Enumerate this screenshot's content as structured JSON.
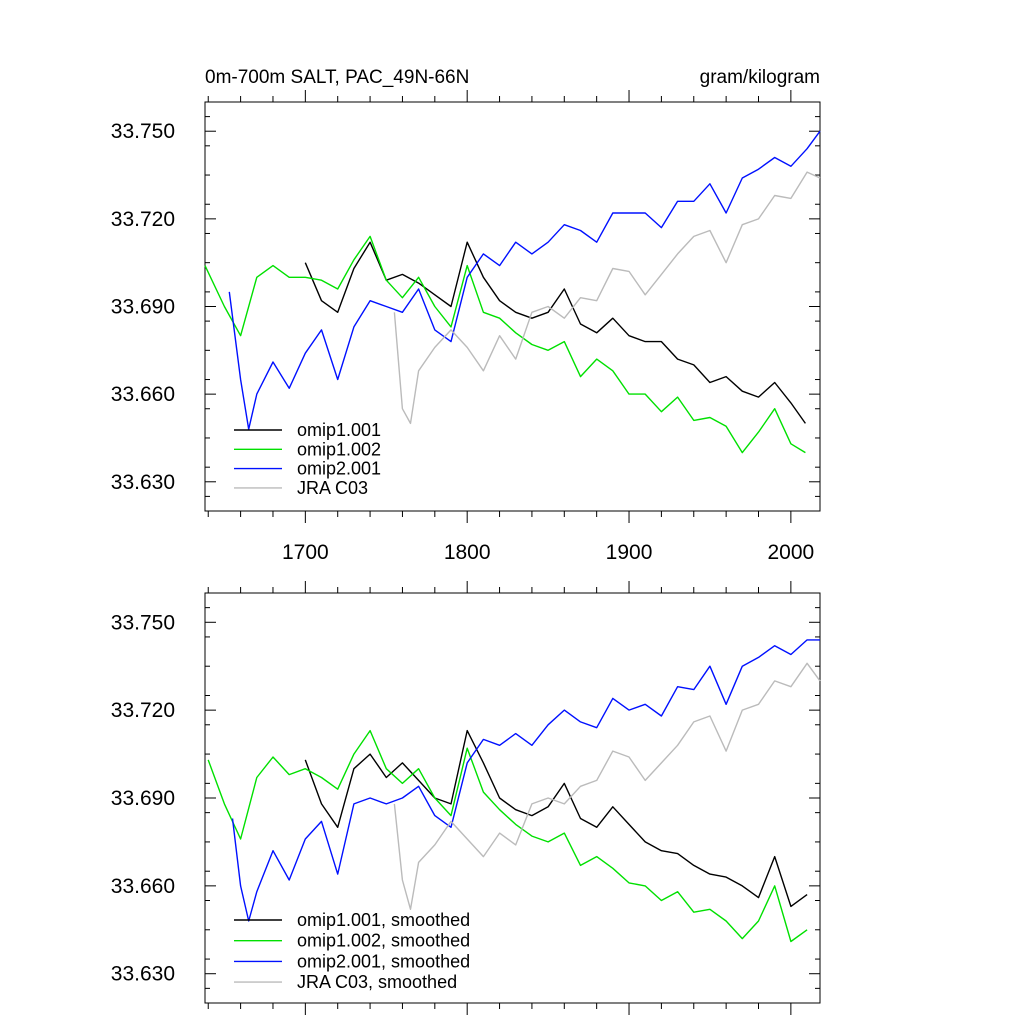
{
  "chart_data": [
    {
      "type": "line",
      "title": "0m-700m SALT, PAC_49N-66N",
      "units": "gram/kilogram",
      "xlabel": "",
      "ylabel": "",
      "xlim": [
        1638,
        2018
      ],
      "ylim": [
        33.62,
        33.76
      ],
      "x_ticks": [
        1700,
        1800,
        1900,
        2000
      ],
      "y_ticks": [
        33.63,
        33.66,
        33.69,
        33.72,
        33.75
      ],
      "y_tick_labels": [
        "33.630",
        "33.660",
        "33.690",
        "33.720",
        "33.750"
      ],
      "legend_position": "bottom-left",
      "series": [
        {
          "name": "omip1.001",
          "color": "#000000",
          "x": [
            1700,
            1710,
            1720,
            1730,
            1740,
            1750,
            1760,
            1770,
            1780,
            1790,
            1800,
            1810,
            1820,
            1830,
            1840,
            1850,
            1860,
            1870,
            1880,
            1890,
            1900,
            1910,
            1920,
            1930,
            1940,
            1950,
            1960,
            1970,
            1980,
            1990,
            2000,
            2009
          ],
          "y": [
            33.705,
            33.692,
            33.688,
            33.703,
            33.712,
            33.699,
            33.701,
            33.698,
            33.694,
            33.69,
            33.712,
            33.7,
            33.692,
            33.688,
            33.686,
            33.688,
            33.696,
            33.684,
            33.681,
            33.686,
            33.68,
            33.678,
            33.678,
            33.672,
            33.67,
            33.664,
            33.666,
            33.661,
            33.659,
            33.664,
            33.657,
            33.65
          ]
        },
        {
          "name": "omip1.002",
          "color": "#00e000",
          "x": [
            1638,
            1650,
            1660,
            1670,
            1680,
            1690,
            1700,
            1710,
            1720,
            1730,
            1740,
            1750,
            1760,
            1770,
            1780,
            1790,
            1800,
            1810,
            1820,
            1830,
            1840,
            1850,
            1860,
            1870,
            1880,
            1890,
            1900,
            1910,
            1920,
            1930,
            1940,
            1950,
            1960,
            1970,
            1980,
            1990,
            2000,
            2009
          ],
          "y": [
            33.704,
            33.69,
            33.68,
            33.7,
            33.704,
            33.7,
            33.7,
            33.699,
            33.696,
            33.706,
            33.714,
            33.699,
            33.693,
            33.7,
            33.69,
            33.683,
            33.704,
            33.688,
            33.686,
            33.681,
            33.677,
            33.675,
            33.678,
            33.666,
            33.672,
            33.668,
            33.66,
            33.66,
            33.654,
            33.659,
            33.651,
            33.652,
            33.649,
            33.64,
            33.647,
            33.655,
            33.643,
            33.64
          ]
        },
        {
          "name": "omip2.001",
          "color": "#0010ff",
          "x": [
            1653,
            1660,
            1665,
            1670,
            1680,
            1690,
            1700,
            1710,
            1720,
            1730,
            1740,
            1750,
            1760,
            1770,
            1780,
            1790,
            1800,
            1810,
            1820,
            1830,
            1840,
            1850,
            1860,
            1870,
            1880,
            1890,
            1900,
            1910,
            1920,
            1930,
            1940,
            1950,
            1960,
            1970,
            1980,
            1990,
            2000,
            2010,
            2018
          ],
          "y": [
            33.695,
            33.665,
            33.648,
            33.66,
            33.671,
            33.662,
            33.674,
            33.682,
            33.665,
            33.683,
            33.692,
            33.69,
            33.688,
            33.696,
            33.682,
            33.678,
            33.7,
            33.708,
            33.704,
            33.712,
            33.708,
            33.712,
            33.718,
            33.716,
            33.712,
            33.722,
            33.722,
            33.722,
            33.717,
            33.726,
            33.726,
            33.732,
            33.722,
            33.734,
            33.737,
            33.741,
            33.738,
            33.744,
            33.75
          ]
        },
        {
          "name": "JRA C03",
          "color": "#bbbbbb",
          "x": [
            1755,
            1760,
            1765,
            1770,
            1780,
            1790,
            1800,
            1810,
            1820,
            1830,
            1840,
            1850,
            1860,
            1870,
            1880,
            1890,
            1900,
            1910,
            1920,
            1930,
            1940,
            1950,
            1960,
            1970,
            1980,
            1990,
            2000,
            2010,
            2018
          ],
          "y": [
            33.688,
            33.655,
            33.65,
            33.668,
            33.676,
            33.682,
            33.676,
            33.668,
            33.68,
            33.672,
            33.688,
            33.69,
            33.686,
            33.693,
            33.692,
            33.703,
            33.702,
            33.694,
            33.701,
            33.708,
            33.714,
            33.716,
            33.705,
            33.718,
            33.72,
            33.728,
            33.727,
            33.736,
            33.734
          ]
        }
      ]
    },
    {
      "type": "line",
      "title": "",
      "xlabel": "",
      "ylabel": "",
      "xlim": [
        1638,
        2018
      ],
      "ylim": [
        33.62,
        33.76
      ],
      "x_ticks": [
        1700,
        1800,
        1900,
        2000
      ],
      "y_ticks": [
        33.63,
        33.66,
        33.69,
        33.72,
        33.75
      ],
      "y_tick_labels": [
        "33.630",
        "33.660",
        "33.690",
        "33.720",
        "33.750"
      ],
      "legend_position": "bottom-left",
      "series": [
        {
          "name": "omip1.001, smoothed",
          "color": "#000000",
          "x": [
            1700,
            1710,
            1720,
            1730,
            1740,
            1750,
            1760,
            1770,
            1780,
            1790,
            1800,
            1810,
            1820,
            1830,
            1840,
            1850,
            1860,
            1870,
            1880,
            1890,
            1900,
            1910,
            1920,
            1930,
            1940,
            1950,
            1960,
            1970,
            1980,
            1990,
            2000,
            2010
          ],
          "y": [
            33.703,
            33.688,
            33.68,
            33.7,
            33.705,
            33.697,
            33.702,
            33.696,
            33.69,
            33.688,
            33.713,
            33.702,
            33.69,
            33.686,
            33.684,
            33.687,
            33.695,
            33.683,
            33.68,
            33.687,
            33.681,
            33.675,
            33.672,
            33.671,
            33.667,
            33.664,
            33.663,
            33.66,
            33.656,
            33.67,
            33.653,
            33.657
          ]
        },
        {
          "name": "omip1.002, smoothed",
          "color": "#00e000",
          "x": [
            1640,
            1650,
            1660,
            1670,
            1680,
            1690,
            1700,
            1710,
            1720,
            1730,
            1740,
            1750,
            1760,
            1770,
            1780,
            1790,
            1800,
            1810,
            1820,
            1830,
            1840,
            1850,
            1860,
            1870,
            1880,
            1890,
            1900,
            1910,
            1920,
            1930,
            1940,
            1950,
            1960,
            1970,
            1980,
            1990,
            2000,
            2010
          ],
          "y": [
            33.703,
            33.688,
            33.676,
            33.697,
            33.704,
            33.698,
            33.7,
            33.697,
            33.693,
            33.705,
            33.713,
            33.7,
            33.695,
            33.7,
            33.69,
            33.684,
            33.707,
            33.692,
            33.686,
            33.681,
            33.677,
            33.675,
            33.678,
            33.667,
            33.67,
            33.666,
            33.661,
            33.66,
            33.655,
            33.658,
            33.651,
            33.652,
            33.648,
            33.642,
            33.648,
            33.66,
            33.641,
            33.645
          ]
        },
        {
          "name": "omip2.001, smoothed",
          "color": "#0010ff",
          "x": [
            1655,
            1660,
            1665,
            1670,
            1680,
            1690,
            1700,
            1710,
            1720,
            1730,
            1740,
            1750,
            1760,
            1770,
            1780,
            1790,
            1800,
            1810,
            1820,
            1830,
            1840,
            1850,
            1860,
            1870,
            1880,
            1890,
            1900,
            1910,
            1920,
            1930,
            1940,
            1950,
            1960,
            1970,
            1980,
            1990,
            2000,
            2010,
            2018
          ],
          "y": [
            33.683,
            33.66,
            33.648,
            33.658,
            33.672,
            33.662,
            33.676,
            33.682,
            33.664,
            33.688,
            33.69,
            33.688,
            33.69,
            33.694,
            33.684,
            33.68,
            33.702,
            33.71,
            33.708,
            33.712,
            33.708,
            33.715,
            33.72,
            33.716,
            33.714,
            33.724,
            33.72,
            33.722,
            33.718,
            33.728,
            33.727,
            33.735,
            33.722,
            33.735,
            33.738,
            33.742,
            33.739,
            33.744,
            33.744
          ]
        },
        {
          "name": "JRA C03, smoothed",
          "color": "#bbbbbb",
          "x": [
            1755,
            1760,
            1765,
            1770,
            1780,
            1790,
            1800,
            1810,
            1820,
            1830,
            1840,
            1850,
            1860,
            1870,
            1880,
            1890,
            1900,
            1910,
            1920,
            1930,
            1940,
            1950,
            1960,
            1970,
            1980,
            1990,
            2000,
            2010,
            2018
          ],
          "y": [
            33.688,
            33.662,
            33.652,
            33.668,
            33.674,
            33.682,
            33.676,
            33.67,
            33.678,
            33.674,
            33.688,
            33.69,
            33.688,
            33.694,
            33.696,
            33.706,
            33.704,
            33.696,
            33.702,
            33.708,
            33.716,
            33.718,
            33.706,
            33.72,
            33.722,
            33.73,
            33.728,
            33.736,
            33.73
          ]
        }
      ]
    }
  ]
}
